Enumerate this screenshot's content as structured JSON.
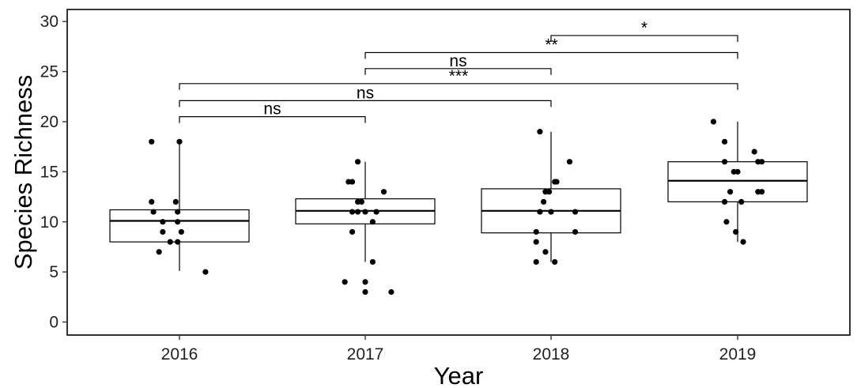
{
  "chart_data": {
    "type": "boxplot",
    "title": "",
    "xlabel": "Year",
    "ylabel": "Species Richness",
    "ylim": [
      -1.3,
      31.2
    ],
    "yticks": [
      0,
      5,
      10,
      15,
      20,
      25,
      30
    ],
    "grid": false,
    "categories": [
      "2016",
      "2017",
      "2018",
      "2019"
    ],
    "boxes": [
      {
        "category": "2016",
        "q1": 8.0,
        "median": 10.1,
        "q3": 11.2,
        "whisker_low": 5.1,
        "whisker_high": 18.0
      },
      {
        "category": "2017",
        "q1": 9.8,
        "median": 11.1,
        "q3": 12.3,
        "whisker_low": 6.0,
        "whisker_high": 16.0
      },
      {
        "category": "2018",
        "q1": 8.9,
        "median": 11.1,
        "q3": 13.3,
        "whisker_low": 6.0,
        "whisker_high": 19.0
      },
      {
        "category": "2019",
        "q1": 12.0,
        "median": 14.1,
        "q3": 16.0,
        "whisker_low": 8.0,
        "whisker_high": 20.0
      }
    ],
    "points": [
      {
        "category": "2016",
        "jitter": -0.15,
        "y": 18
      },
      {
        "category": "2016",
        "jitter": 0.0,
        "y": 18
      },
      {
        "category": "2016",
        "jitter": -0.15,
        "y": 12
      },
      {
        "category": "2016",
        "jitter": -0.02,
        "y": 12
      },
      {
        "category": "2016",
        "jitter": -0.14,
        "y": 11
      },
      {
        "category": "2016",
        "jitter": -0.01,
        "y": 11
      },
      {
        "category": "2016",
        "jitter": -0.09,
        "y": 10
      },
      {
        "category": "2016",
        "jitter": -0.01,
        "y": 10
      },
      {
        "category": "2016",
        "jitter": -0.09,
        "y": 9
      },
      {
        "category": "2016",
        "jitter": 0.01,
        "y": 9
      },
      {
        "category": "2016",
        "jitter": -0.05,
        "y": 8
      },
      {
        "category": "2016",
        "jitter": -0.01,
        "y": 8
      },
      {
        "category": "2016",
        "jitter": -0.11,
        "y": 7
      },
      {
        "category": "2016",
        "jitter": 0.14,
        "y": 5
      },
      {
        "category": "2017",
        "jitter": -0.04,
        "y": 16
      },
      {
        "category": "2017",
        "jitter": -0.09,
        "y": 14
      },
      {
        "category": "2017",
        "jitter": -0.07,
        "y": 14
      },
      {
        "category": "2017",
        "jitter": 0.1,
        "y": 13
      },
      {
        "category": "2017",
        "jitter": -0.04,
        "y": 12
      },
      {
        "category": "2017",
        "jitter": -0.02,
        "y": 12
      },
      {
        "category": "2017",
        "jitter": -0.07,
        "y": 11
      },
      {
        "category": "2017",
        "jitter": -0.04,
        "y": 11
      },
      {
        "category": "2017",
        "jitter": 0.0,
        "y": 11
      },
      {
        "category": "2017",
        "jitter": 0.06,
        "y": 11
      },
      {
        "category": "2017",
        "jitter": 0.04,
        "y": 10
      },
      {
        "category": "2017",
        "jitter": -0.07,
        "y": 9
      },
      {
        "category": "2017",
        "jitter": 0.04,
        "y": 6
      },
      {
        "category": "2017",
        "jitter": -0.11,
        "y": 4
      },
      {
        "category": "2017",
        "jitter": 0.0,
        "y": 4
      },
      {
        "category": "2017",
        "jitter": 0.0,
        "y": 3
      },
      {
        "category": "2017",
        "jitter": 0.14,
        "y": 3
      },
      {
        "category": "2018",
        "jitter": -0.06,
        "y": 19
      },
      {
        "category": "2018",
        "jitter": 0.1,
        "y": 16
      },
      {
        "category": "2018",
        "jitter": 0.03,
        "y": 14
      },
      {
        "category": "2018",
        "jitter": 0.02,
        "y": 14
      },
      {
        "category": "2018",
        "jitter": -0.03,
        "y": 13
      },
      {
        "category": "2018",
        "jitter": -0.01,
        "y": 13
      },
      {
        "category": "2018",
        "jitter": -0.04,
        "y": 12
      },
      {
        "category": "2018",
        "jitter": -0.06,
        "y": 11
      },
      {
        "category": "2018",
        "jitter": 0.0,
        "y": 11
      },
      {
        "category": "2018",
        "jitter": 0.13,
        "y": 11
      },
      {
        "category": "2018",
        "jitter": -0.08,
        "y": 9
      },
      {
        "category": "2018",
        "jitter": 0.13,
        "y": 9
      },
      {
        "category": "2018",
        "jitter": -0.08,
        "y": 8
      },
      {
        "category": "2018",
        "jitter": -0.03,
        "y": 7
      },
      {
        "category": "2018",
        "jitter": -0.08,
        "y": 6
      },
      {
        "category": "2018",
        "jitter": 0.02,
        "y": 6
      },
      {
        "category": "2019",
        "jitter": -0.13,
        "y": 20
      },
      {
        "category": "2019",
        "jitter": -0.07,
        "y": 18
      },
      {
        "category": "2019",
        "jitter": 0.09,
        "y": 17
      },
      {
        "category": "2019",
        "jitter": -0.07,
        "y": 16
      },
      {
        "category": "2019",
        "jitter": 0.11,
        "y": 16
      },
      {
        "category": "2019",
        "jitter": 0.13,
        "y": 16
      },
      {
        "category": "2019",
        "jitter": -0.02,
        "y": 15
      },
      {
        "category": "2019",
        "jitter": 0.0,
        "y": 15
      },
      {
        "category": "2019",
        "jitter": -0.04,
        "y": 13
      },
      {
        "category": "2019",
        "jitter": 0.11,
        "y": 13
      },
      {
        "category": "2019",
        "jitter": 0.13,
        "y": 13
      },
      {
        "category": "2019",
        "jitter": -0.07,
        "y": 12
      },
      {
        "category": "2019",
        "jitter": 0.02,
        "y": 12
      },
      {
        "category": "2019",
        "jitter": -0.06,
        "y": 10
      },
      {
        "category": "2019",
        "jitter": -0.01,
        "y": 9
      },
      {
        "category": "2019",
        "jitter": 0.03,
        "y": 8
      }
    ],
    "comparisons": [
      {
        "from": "2016",
        "to": "2017",
        "label": "ns",
        "y": 20.5
      },
      {
        "from": "2016",
        "to": "2018",
        "label": "ns",
        "y": 22.1
      },
      {
        "from": "2016",
        "to": "2019",
        "label": "***",
        "y": 23.8
      },
      {
        "from": "2017",
        "to": "2018",
        "label": "ns",
        "y": 25.3
      },
      {
        "from": "2017",
        "to": "2019",
        "label": "**",
        "y": 26.9
      },
      {
        "from": "2018",
        "to": "2019",
        "label": "*",
        "y": 28.6
      }
    ],
    "colors": {
      "box_fill": "#ffffff",
      "stroke": "#000000",
      "point": "#000000"
    }
  }
}
